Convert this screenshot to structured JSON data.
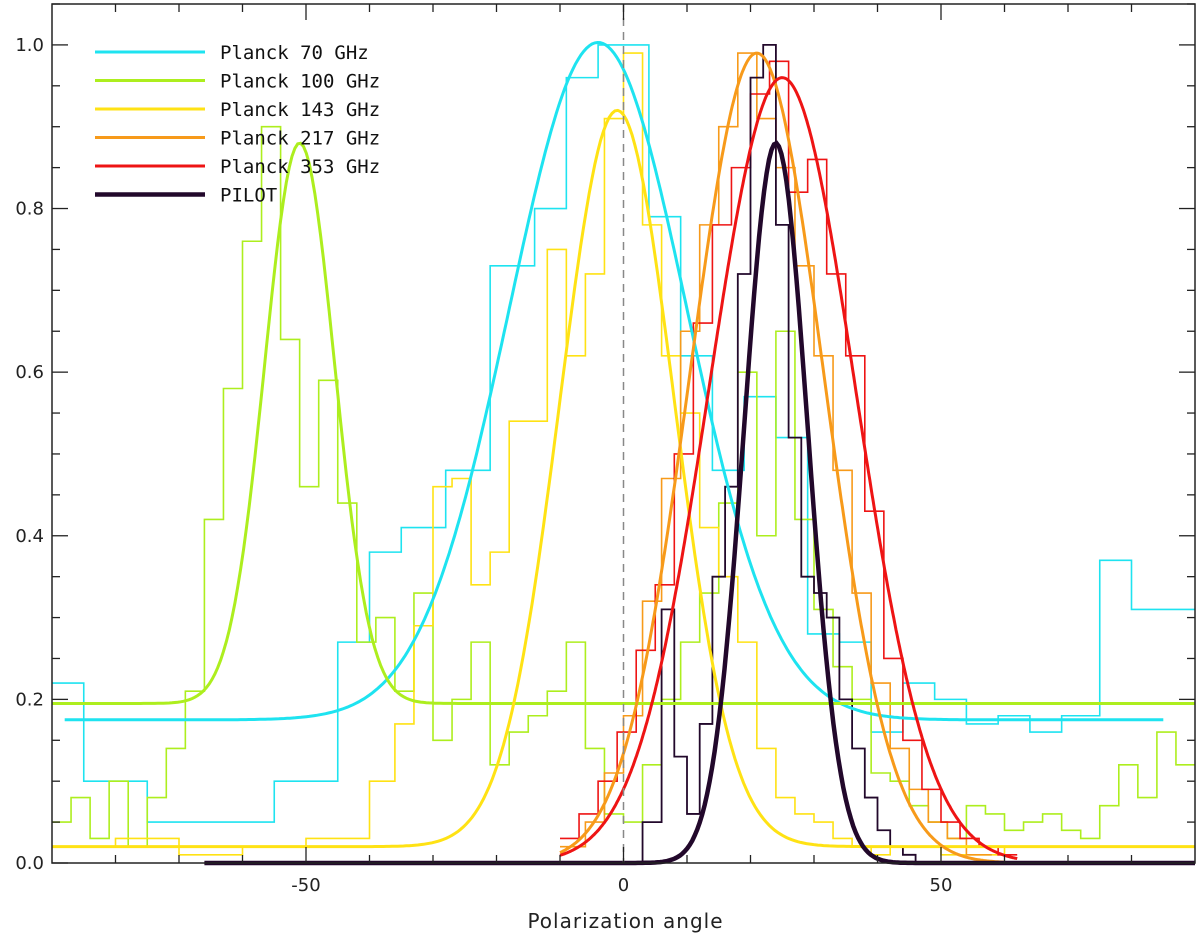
{
  "chart_data": {
    "type": "line",
    "title": "",
    "xlabel": "Polarization angle",
    "ylabel": "",
    "xlim": [
      -90,
      90
    ],
    "ylim": [
      0,
      1.05
    ],
    "x_ticks": [
      -50,
      0,
      50
    ],
    "x_tick_labels": [
      "-50",
      "0",
      "50"
    ],
    "y_ticks": [
      0.0,
      0.2,
      0.4,
      0.6,
      0.8,
      1.0
    ],
    "y_tick_labels": [
      "0.0",
      "0.2",
      "0.4",
      "0.6",
      "0.8",
      "1.0"
    ],
    "reference_line": {
      "x": 0,
      "style": "dashed"
    },
    "legend": {
      "position": "top-left"
    },
    "grid": false,
    "series": [
      {
        "name": "Planck 70 GHz",
        "color": "#1EE3F0",
        "fit": {
          "baseline": 0.175,
          "amplitude": 0.828,
          "center": -4,
          "sigma": 14,
          "x_range": [
            -88,
            85
          ]
        },
        "histogram": {
          "edges": [
            -90,
            -85,
            -75,
            -65,
            -55,
            -45,
            -40,
            -35,
            -28,
            -21,
            -14,
            -9,
            -4,
            4,
            9,
            14,
            19,
            24,
            29,
            34,
            39,
            44,
            49,
            54,
            59,
            64,
            69,
            75,
            80,
            85,
            90
          ],
          "values": [
            0.22,
            0.1,
            0.05,
            0.05,
            0.1,
            0.27,
            0.38,
            0.41,
            0.48,
            0.73,
            0.8,
            0.96,
            1.0,
            0.79,
            0.62,
            0.48,
            0.57,
            0.52,
            0.28,
            0.27,
            0.16,
            0.22,
            0.2,
            0.17,
            0.18,
            0.16,
            0.18,
            0.37,
            0.31,
            0.31
          ]
        }
      },
      {
        "name": "Planck 100 GHz",
        "color": "#ADEE1E",
        "fit": {
          "baseline": 0.195,
          "amplitude": 0.685,
          "center": -51,
          "sigma": 5.5,
          "x_range": [
            -90,
            90
          ]
        },
        "histogram": {
          "edges": [
            -90,
            -87,
            -84,
            -81,
            -78,
            -75,
            -72,
            -69,
            -66,
            -63,
            -60,
            -57,
            -54,
            -51,
            -48,
            -45,
            -42,
            -39,
            -36,
            -33,
            -30,
            -27,
            -24,
            -21,
            -18,
            -15,
            -12,
            -9,
            -6,
            -3,
            0,
            3,
            6,
            9,
            12,
            15,
            18,
            21,
            24,
            27,
            30,
            33,
            36,
            39,
            42,
            45,
            48,
            51,
            54,
            57,
            60,
            63,
            66,
            69,
            72,
            75,
            78,
            81,
            84,
            87,
            90
          ],
          "values": [
            0.05,
            0.08,
            0.03,
            0.1,
            0.02,
            0.08,
            0.14,
            0.21,
            0.42,
            0.58,
            0.76,
            0.9,
            0.64,
            0.46,
            0.59,
            0.44,
            0.27,
            0.3,
            0.21,
            0.33,
            0.15,
            0.2,
            0.27,
            0.12,
            0.16,
            0.18,
            0.21,
            0.27,
            0.14,
            0.06,
            0.05,
            0.12,
            0.2,
            0.27,
            0.33,
            0.44,
            0.6,
            0.4,
            0.65,
            0.42,
            0.31,
            0.24,
            0.2,
            0.11,
            0.1,
            0.07,
            0.05,
            0.03,
            0.07,
            0.06,
            0.04,
            0.05,
            0.06,
            0.04,
            0.03,
            0.07,
            0.12,
            0.08,
            0.16,
            0.12
          ]
        }
      },
      {
        "name": "Planck 143 GHz",
        "color": "#FFE214",
        "fit": {
          "baseline": 0.02,
          "amplitude": 0.9,
          "center": -1,
          "sigma": 9,
          "x_range": [
            -90,
            90
          ]
        },
        "histogram": {
          "edges": [
            -90,
            -80,
            -70,
            -60,
            -50,
            -40,
            -36,
            -33,
            -30,
            -27,
            -24,
            -21,
            -18,
            -15,
            -12,
            -9,
            -6,
            -3,
            0,
            3,
            6,
            9,
            12,
            15,
            18,
            21,
            24,
            27,
            30,
            33,
            36,
            39,
            42,
            50,
            60,
            90
          ],
          "values": [
            0.02,
            0.03,
            0.01,
            0.02,
            0.03,
            0.1,
            0.17,
            0.29,
            0.46,
            0.47,
            0.34,
            0.38,
            0.54,
            0.54,
            0.75,
            0.62,
            0.72,
            0.91,
            0.99,
            0.78,
            0.62,
            0.55,
            0.41,
            0.35,
            0.27,
            0.14,
            0.08,
            0.06,
            0.05,
            0.03,
            0.02,
            0.01,
            0.02,
            0.01,
            0.02
          ]
        }
      },
      {
        "name": "Planck 217 GHz",
        "color": "#F79A1A",
        "fit": {
          "baseline": 0.0,
          "amplitude": 0.99,
          "center": 21,
          "sigma": 10.5,
          "x_range": [
            -10,
            60
          ]
        },
        "histogram": {
          "edges": [
            -10,
            -6,
            -3,
            0,
            3,
            6,
            9,
            12,
            15,
            18,
            21,
            24,
            27,
            30,
            33,
            36,
            39,
            42,
            45,
            48,
            51,
            54,
            58
          ],
          "values": [
            0.02,
            0.05,
            0.11,
            0.18,
            0.32,
            0.47,
            0.65,
            0.78,
            0.9,
            0.99,
            0.91,
            0.85,
            0.73,
            0.62,
            0.48,
            0.33,
            0.22,
            0.14,
            0.09,
            0.05,
            0.03,
            0.01
          ]
        }
      },
      {
        "name": "Planck 353 GHz",
        "color": "#EE1414",
        "fit": {
          "baseline": 0.0,
          "amplitude": 0.96,
          "center": 25,
          "sigma": 11.5,
          "x_range": [
            -10,
            62
          ]
        },
        "histogram": {
          "edges": [
            -10,
            -7,
            -4,
            -1,
            2,
            5,
            8,
            11,
            14,
            17,
            20,
            23,
            26,
            29,
            32,
            35,
            38,
            41,
            44,
            47,
            50,
            53,
            56,
            59,
            62
          ],
          "values": [
            0.03,
            0.06,
            0.1,
            0.16,
            0.26,
            0.34,
            0.5,
            0.66,
            0.78,
            0.85,
            0.94,
            0.98,
            0.82,
            0.86,
            0.72,
            0.62,
            0.43,
            0.25,
            0.15,
            0.09,
            0.05,
            0.03,
            0.02,
            0.01
          ]
        }
      },
      {
        "name": "PILOT",
        "color": "#22082B",
        "fit": {
          "baseline": 0.0,
          "amplitude": 0.88,
          "center": 24,
          "sigma": 5,
          "x_range": [
            -66,
            90
          ]
        },
        "histogram": {
          "edges": [
            -66,
            3,
            6,
            8,
            10,
            12,
            14,
            16,
            18,
            20,
            22,
            24,
            26,
            28,
            30,
            32,
            34,
            36,
            38,
            40,
            42,
            44,
            46,
            48,
            90
          ],
          "values": [
            0.0,
            0.05,
            0.31,
            0.13,
            0.06,
            0.17,
            0.35,
            0.46,
            0.72,
            0.96,
            1.0,
            0.78,
            0.52,
            0.35,
            0.33,
            0.3,
            0.2,
            0.14,
            0.08,
            0.04,
            0.02,
            0.01,
            0.0,
            0.0
          ]
        }
      }
    ]
  }
}
